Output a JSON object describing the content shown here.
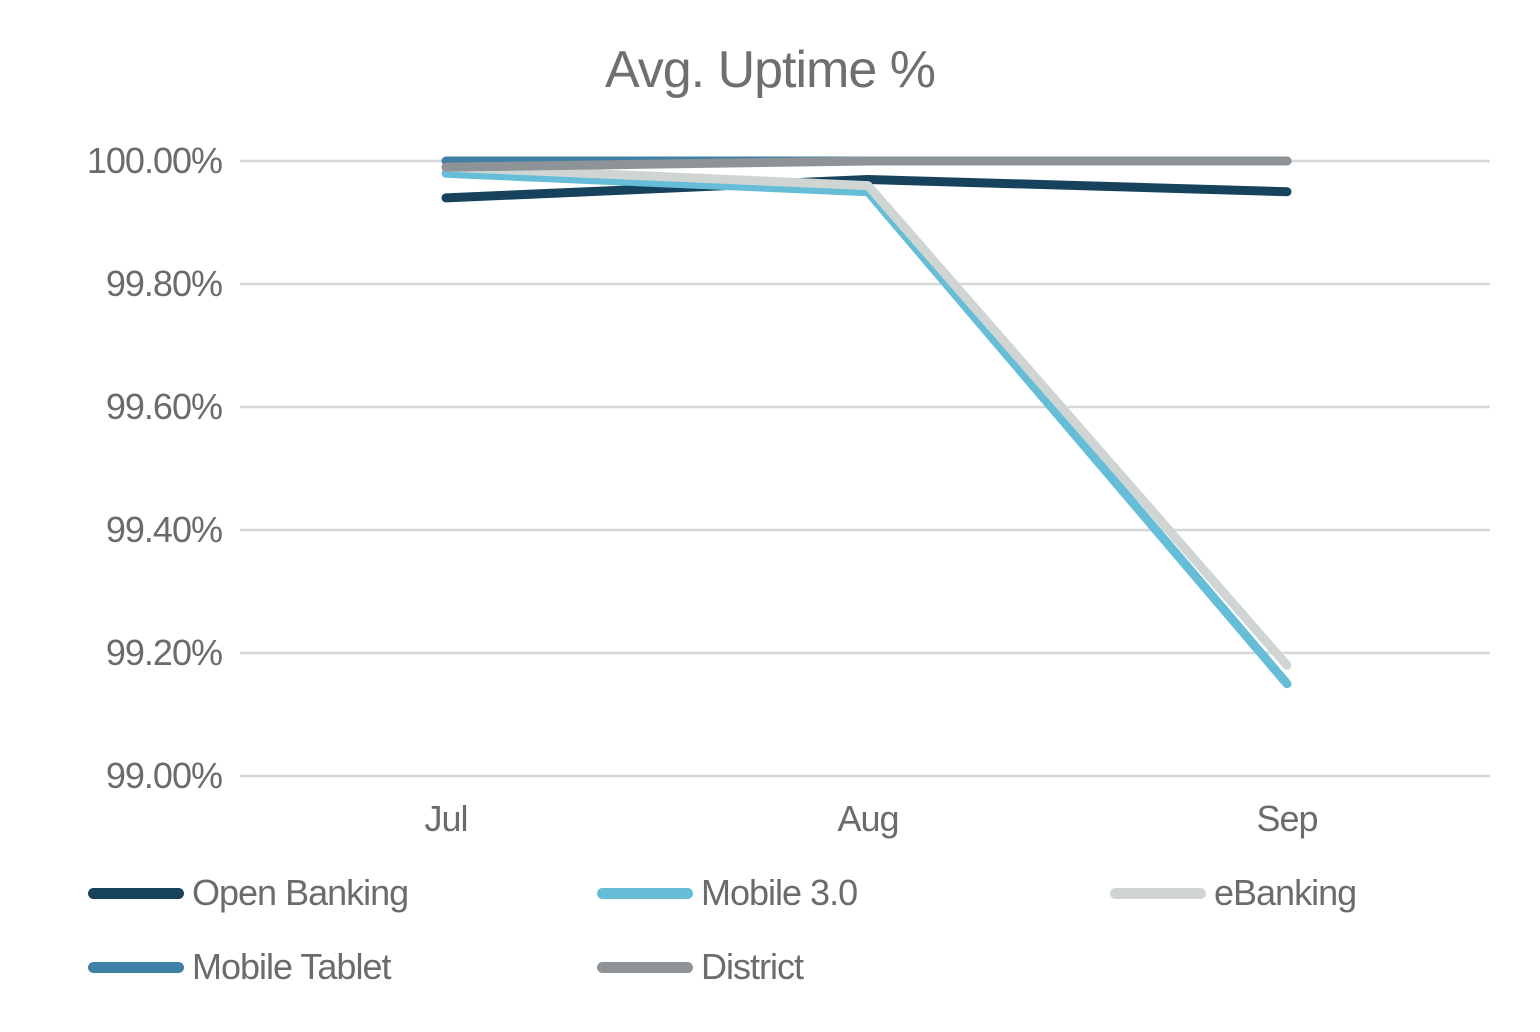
{
  "chart_data": {
    "type": "line",
    "title": "Avg. Uptime %",
    "categories": [
      "Jul",
      "Aug",
      "Sep"
    ],
    "xlabel": "",
    "ylabel": "",
    "ylim": [
      99.0,
      100.0
    ],
    "grid": true,
    "gridline_color": "#d8d8d8",
    "text_color": "#6b6b6b",
    "legend_position": "bottom",
    "y_ticks": [
      {
        "label": "100.00%",
        "value": 100.0
      },
      {
        "label": "99.80%",
        "value": 99.8
      },
      {
        "label": "99.60%",
        "value": 99.6
      },
      {
        "label": "99.40%",
        "value": 99.4
      },
      {
        "label": "99.20%",
        "value": 99.2
      },
      {
        "label": "99.00%",
        "value": 99.0
      }
    ],
    "series": [
      {
        "name": "Open Banking",
        "color": "#16425e",
        "values": [
          99.94,
          99.97,
          99.95
        ]
      },
      {
        "name": "Mobile 3.0",
        "color": "#65bdd7",
        "values": [
          99.98,
          99.95,
          99.15
        ]
      },
      {
        "name": "eBanking",
        "color": "#cfd5d3",
        "values": [
          99.99,
          99.96,
          99.18
        ]
      },
      {
        "name": "Mobile Tablet",
        "color": "#3f80a4",
        "values": [
          100.0,
          100.0,
          100.0
        ]
      },
      {
        "name": "District",
        "color": "#8d9396",
        "values": [
          99.99,
          100.0,
          100.0
        ]
      }
    ]
  }
}
